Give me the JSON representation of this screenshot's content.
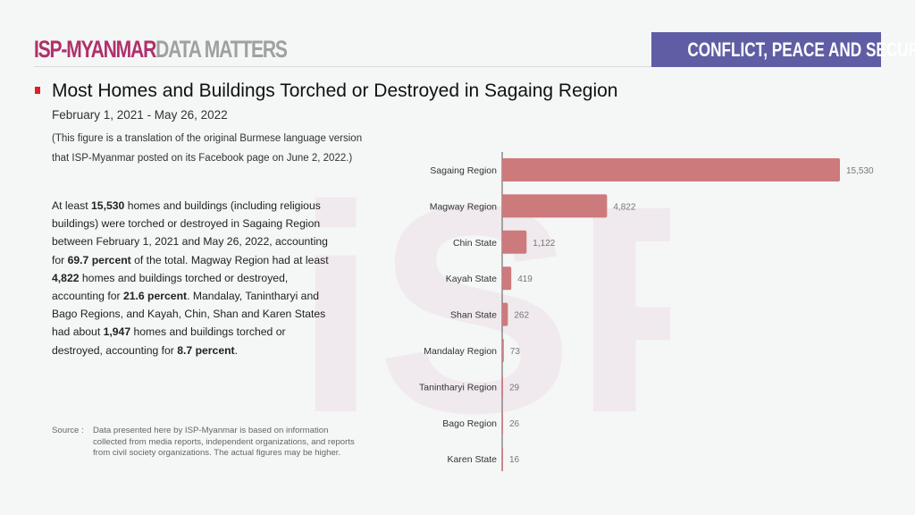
{
  "header": {
    "brand_primary": "ISP-MYANMAR",
    "brand_secondary": "DATA MATTERS",
    "category": "CONFLICT, PEACE AND SECURITY"
  },
  "title": "Most Homes and Buildings Torched or Destroyed in Sagaing Region",
  "date_range": "February 1, 2021 - May 26, 2022",
  "note_line1": "(This figure is a translation of the original Burmese language version",
  "note_line2": "that ISP-Myanmar posted on its Facebook page on June 2, 2022.)",
  "summary": [
    {
      "t": "At least ",
      "b": false
    },
    {
      "t": "15,530",
      "b": true
    },
    {
      "t": " homes and buildings (including religious buildings) were torched or destroyed in Sagaing Region between February 1, 2021 and May 26, 2022, accounting for ",
      "b": false
    },
    {
      "t": "69.7 percent",
      "b": true
    },
    {
      "t": " of the total. Magway Region had at least ",
      "b": false
    },
    {
      "t": "4,822",
      "b": true
    },
    {
      "t": " homes and buildings torched or destroyed, accounting for ",
      "b": false
    },
    {
      "t": "21.6 percent",
      "b": true
    },
    {
      "t": ". Mandalay, Tanintharyi and Bago Regions, and Kayah, Chin, Shan and Karen States had about ",
      "b": false
    },
    {
      "t": "1,947",
      "b": true
    },
    {
      "t": " homes and buildings torched or destroyed, accounting for ",
      "b": false
    },
    {
      "t": "8.7 percent",
      "b": true
    },
    {
      "t": ".",
      "b": false
    }
  ],
  "source": {
    "label": "Source :",
    "text": "Data presented here by ISP-Myanmar is based on information collected from media reports, independent organizations, and reports from civil society organizations. The actual figures may be higher."
  },
  "chart_data": {
    "type": "bar",
    "orientation": "horizontal",
    "categories": [
      "Sagaing Region",
      "Magway Region",
      "Chin State",
      "Kayah State",
      "Shan State",
      "Mandalay Region",
      "Tanintharyi Region",
      "Bago Region",
      "Karen State"
    ],
    "values": [
      15530,
      4822,
      1122,
      419,
      262,
      73,
      29,
      26,
      16
    ],
    "labels": [
      "15,530",
      "4,822",
      "1,122",
      "419",
      "262",
      "73",
      "29",
      "26",
      "16"
    ],
    "bar_color": "#cd7a7d",
    "xlim": [
      0,
      15530
    ],
    "grid": false,
    "legend": "none"
  }
}
